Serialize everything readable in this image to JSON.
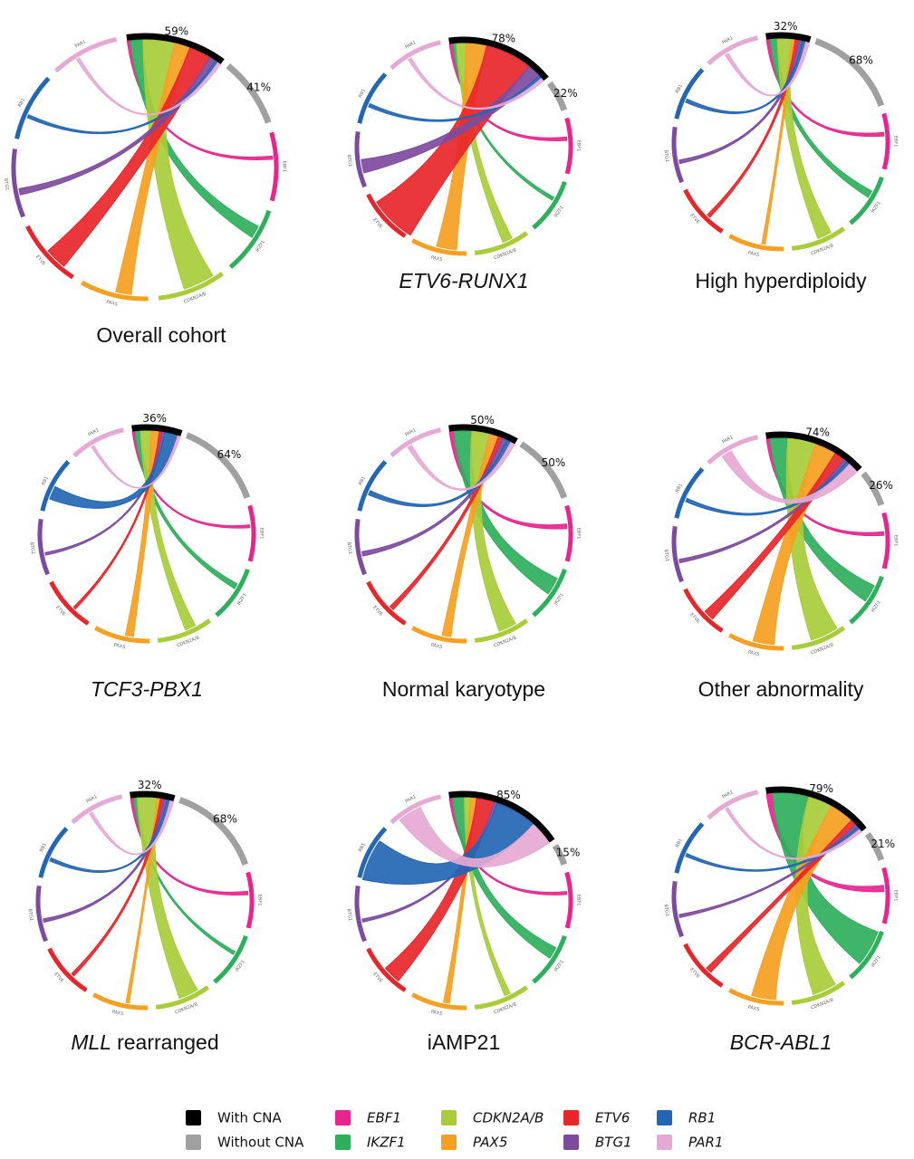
{
  "legend": {
    "items": [
      {
        "name": "With CNA",
        "color": "#000000",
        "italic": false
      },
      {
        "name": "Without CNA",
        "color": "#a0a0a0",
        "italic": false
      },
      {
        "name": "EBF1",
        "color": "#e8258f",
        "italic": true
      },
      {
        "name": "IKZF1",
        "color": "#2eaf5b",
        "italic": true
      },
      {
        "name": "CDKN2A/B",
        "color": "#a8cc3a",
        "italic": true
      },
      {
        "name": "PAX5",
        "color": "#f5a021",
        "italic": true
      },
      {
        "name": "ETV6",
        "color": "#e8262a",
        "italic": true
      },
      {
        "name": "BTG1",
        "color": "#7d4b9e",
        "italic": true
      },
      {
        "name": "RB1",
        "color": "#2366b3",
        "italic": true
      },
      {
        "name": "PAR1",
        "color": "#e6a9d4",
        "italic": true
      }
    ]
  },
  "chart_data": [
    {
      "type": "chord",
      "title_parts": [
        "Overall cohort"
      ],
      "italic": [
        false
      ],
      "values": [
        59,
        41
      ],
      "value_labels": [
        "59%",
        "41%"
      ],
      "chord_widths": [
        1,
        4,
        10,
        5,
        7,
        2,
        1,
        1
      ]
    },
    {
      "type": "chord",
      "title_parts": [
        "ETV6-RUNX1"
      ],
      "italic": [
        true
      ],
      "values": [
        78,
        22
      ],
      "value_labels": [
        "78%",
        "22%"
      ],
      "chord_widths": [
        1,
        1,
        3,
        6,
        14,
        4,
        1,
        1
      ]
    },
    {
      "type": "chord",
      "title_parts": [
        "High hyperdiploidy"
      ],
      "italic": [
        false
      ],
      "values": [
        32,
        68
      ],
      "value_labels": [
        "32%",
        "68%"
      ],
      "chord_widths": [
        1,
        2,
        4,
        1,
        1,
        1,
        1,
        1
      ]
    },
    {
      "type": "chord",
      "title_parts": [
        "TCF3-PBX1"
      ],
      "italic": [
        true
      ],
      "values": [
        36,
        64
      ],
      "value_labels": [
        "36%",
        "64%"
      ],
      "chord_widths": [
        1,
        2,
        4,
        3,
        1,
        1,
        5,
        1
      ]
    },
    {
      "type": "chord",
      "title_parts": [
        "Normal karyotype"
      ],
      "italic": [
        false
      ],
      "values": [
        50,
        50
      ],
      "value_labels": [
        "50%",
        "50%"
      ],
      "chord_widths": [
        1,
        4,
        4,
        2,
        1,
        1,
        1,
        1
      ]
    },
    {
      "type": "chord",
      "title_parts": [
        "Other abnormality"
      ],
      "italic": [
        false
      ],
      "values": [
        74,
        26
      ],
      "value_labels": [
        "74%",
        "26%"
      ],
      "chord_widths": [
        1,
        5,
        8,
        6,
        3,
        1,
        1,
        3
      ]
    },
    {
      "type": "chord",
      "title_parts": [
        "MLL",
        "rearranged"
      ],
      "italic": [
        true,
        false
      ],
      "values": [
        32,
        68
      ],
      "value_labels": [
        "32%",
        "68%"
      ],
      "chord_widths": [
        1,
        1,
        6,
        1,
        1,
        1,
        1,
        1
      ]
    },
    {
      "type": "chord",
      "title_parts": [
        "iAMP21"
      ],
      "italic": [
        false
      ],
      "values": [
        85,
        15
      ],
      "value_labels": [
        "85%",
        "15%"
      ],
      "chord_widths": [
        1,
        4,
        2,
        2,
        6,
        1,
        14,
        8
      ]
    },
    {
      "type": "chord",
      "title_parts": [
        "BCR-ABL1"
      ],
      "italic": [
        true
      ],
      "values": [
        79,
        21
      ],
      "value_labels": [
        "79%",
        "21%"
      ],
      "chord_widths": [
        2,
        12,
        8,
        8,
        2,
        1,
        1,
        1
      ]
    }
  ]
}
